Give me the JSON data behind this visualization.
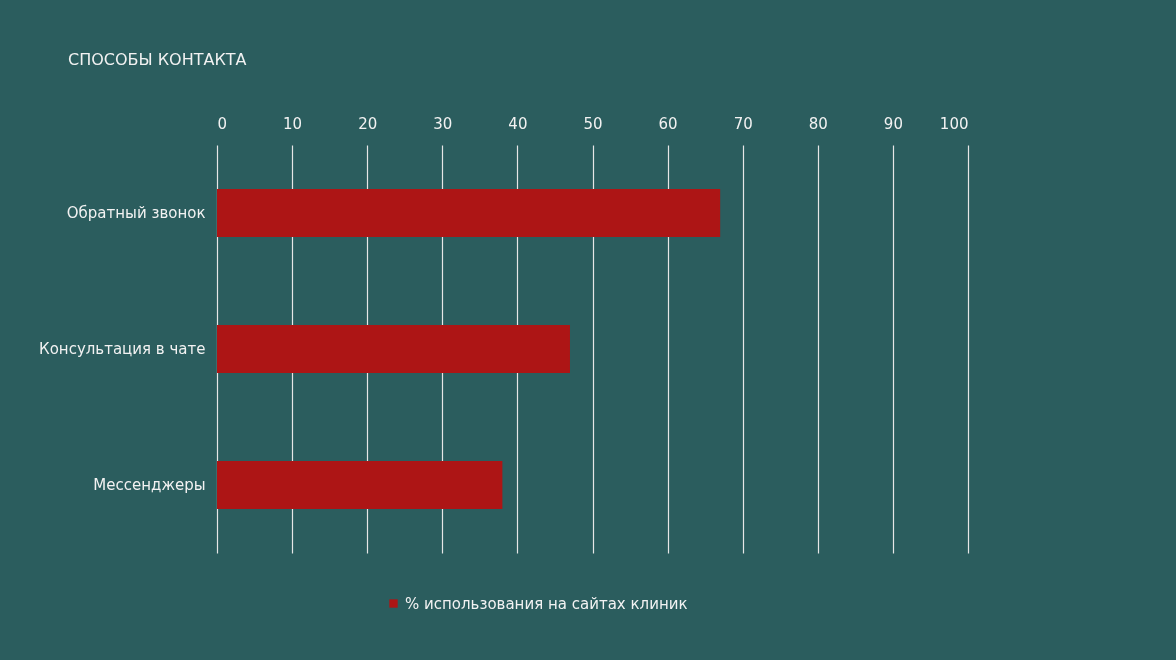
{
  "chart_data": {
    "type": "bar",
    "orientation": "horizontal",
    "title": "СПОСОБЫ КОНТАКТА",
    "categories": [
      "Обратный звонок",
      "Консультация в чате",
      "Мессенджеры"
    ],
    "series": [
      {
        "name": "% использования на сайтах клиник",
        "color": "#ad1515",
        "values": [
          67,
          47,
          38
        ]
      }
    ],
    "xlim": [
      0,
      100
    ],
    "xticks": [
      0,
      10,
      20,
      30,
      40,
      50,
      60,
      70,
      80,
      90,
      100
    ],
    "grid": "x",
    "legend": "bottom"
  }
}
